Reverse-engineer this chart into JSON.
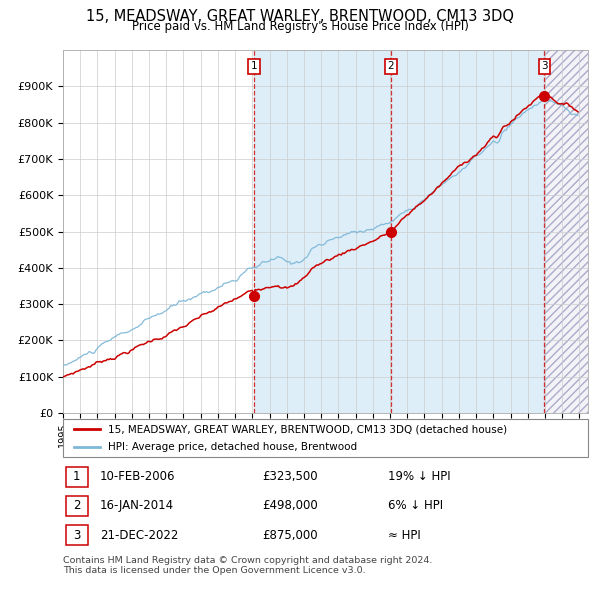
{
  "title": "15, MEADSWAY, GREAT WARLEY, BRENTWOOD, CM13 3DQ",
  "subtitle": "Price paid vs. HM Land Registry's House Price Index (HPI)",
  "ylim": [
    0,
    1000000
  ],
  "yticks": [
    0,
    100000,
    200000,
    300000,
    400000,
    500000,
    600000,
    700000,
    800000,
    900000
  ],
  "ytick_labels": [
    "£0",
    "£100K",
    "£200K",
    "£300K",
    "£400K",
    "£500K",
    "£600K",
    "£700K",
    "£800K",
    "£900K"
  ],
  "sale_dates_decimal": [
    2006.11,
    2014.05,
    2022.97
  ],
  "sale_prices": [
    323500,
    498000,
    875000
  ],
  "sale_labels": [
    "1",
    "2",
    "3"
  ],
  "hpi_color": "#7fb8d8",
  "price_color": "#cc0000",
  "bg_between_color": "#ddeef8",
  "grid_color": "#cccccc",
  "legend_line1": "15, MEADSWAY, GREAT WARLEY, BRENTWOOD, CM13 3DQ (detached house)",
  "legend_line2": "HPI: Average price, detached house, Brentwood",
  "table_rows": [
    {
      "num": "1",
      "date": "10-FEB-2006",
      "price": "£323,500",
      "rel": "19% ↓ HPI"
    },
    {
      "num": "2",
      "date": "16-JAN-2014",
      "price": "£498,000",
      "rel": "6% ↓ HPI"
    },
    {
      "num": "3",
      "date": "21-DEC-2022",
      "price": "£875,000",
      "rel": "≈ HPI"
    }
  ],
  "footnote1": "Contains HM Land Registry data © Crown copyright and database right 2024.",
  "footnote2": "This data is licensed under the Open Government Licence v3.0."
}
